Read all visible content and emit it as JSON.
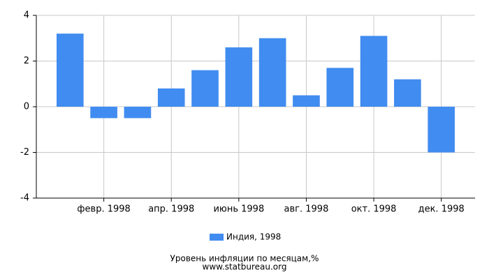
{
  "chart_data": {
    "type": "bar",
    "title": "Уровень инфляции по месяцам,%",
    "subtitle": "www.statbureau.org",
    "categories": [
      null,
      "февр. 1998",
      null,
      "апр. 1998",
      null,
      "июнь 1998",
      null,
      "авг. 1998",
      null,
      "окт. 1998",
      null,
      "дек. 1998"
    ],
    "series": [
      {
        "name": "Индия, 1998",
        "color": "#418cf0",
        "values": [
          3.2,
          -0.5,
          -0.5,
          0.8,
          1.6,
          2.6,
          3.0,
          0.5,
          1.7,
          3.1,
          1.2,
          -2.0
        ]
      }
    ],
    "ylim": [
      -4,
      4
    ],
    "yticks": [
      -4,
      -2,
      0,
      2,
      4
    ],
    "grid": true,
    "legend": "bottom"
  }
}
